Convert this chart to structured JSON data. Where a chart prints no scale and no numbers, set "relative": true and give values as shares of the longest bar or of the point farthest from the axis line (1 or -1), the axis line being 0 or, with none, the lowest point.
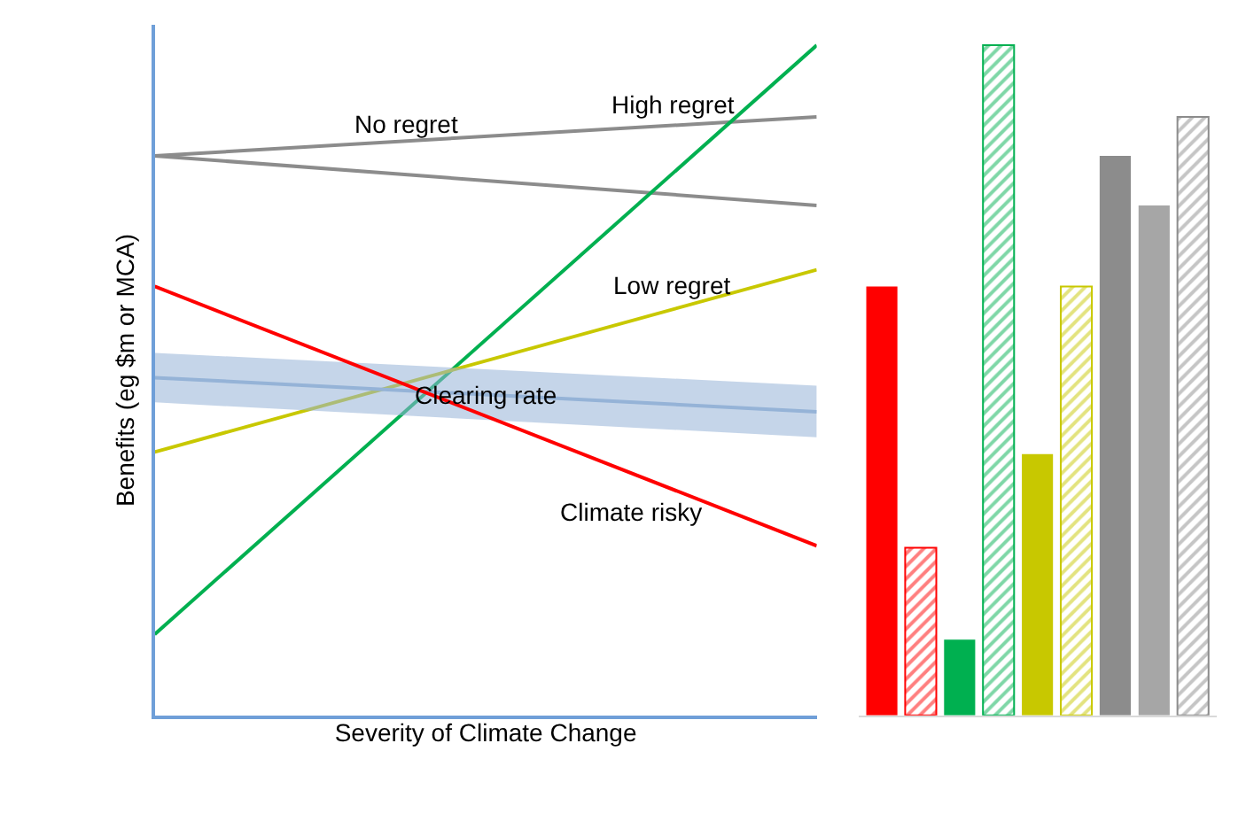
{
  "chart_data": [
    {
      "type": "line",
      "relative": true,
      "xlabel": "Severity of Climate Change",
      "ylabel": "Benefits (eg $m or MCA)",
      "categories": [
        null,
        null
      ],
      "tick_labels": false,
      "marker": "none",
      "series": [
        {
          "name": "No regret",
          "color": "#8c8c8c",
          "values": [
            0.835,
            0.893
          ]
        },
        {
          "color": "#8c8c8c",
          "values": [
            0.835,
            0.761
          ]
        },
        {
          "name": "High regret",
          "color": "#00b050",
          "values": [
            0.121,
            1.0
          ]
        },
        {
          "name": "Low regret",
          "color": "#c8c800",
          "values": [
            0.393,
            0.665
          ]
        },
        {
          "name": "Clearing rate",
          "color": "#95b3d7",
          "values": [
            0.504,
            0.453
          ],
          "lower": [
            0.467,
            0.415
          ],
          "upper": [
            0.541,
            0.492
          ]
        },
        {
          "name": "Climate risky",
          "color": "#ff0000",
          "values": [
            0.64,
            0.253
          ]
        }
      ]
    },
    {
      "type": "bar",
      "relative": true,
      "categories": [
        null,
        null,
        null,
        null,
        null,
        null,
        null,
        null,
        null
      ],
      "tick_labels": false,
      "colors": [
        "#ff0000",
        "#ff0000",
        "#00b050",
        "#00b050",
        "#c8c800",
        "#c8c800",
        "#8c8c8c",
        "#a6a6a6",
        "#8c8c8c"
      ],
      "values": [
        0.64,
        0.25,
        0.113,
        1.0,
        0.39,
        0.64,
        0.835,
        0.761,
        0.893
      ]
    }
  ]
}
